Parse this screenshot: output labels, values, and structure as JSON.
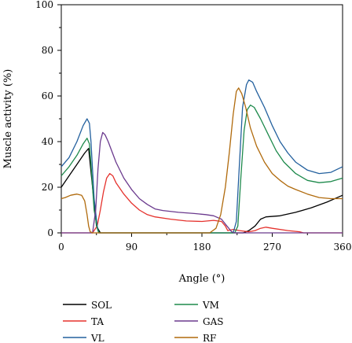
{
  "chart_data": {
    "type": "line",
    "xlabel": "Angle (°)",
    "ylabel": "Muscle activity (%)",
    "xlim": [
      0,
      360
    ],
    "ylim": [
      0,
      100
    ],
    "xticks": [
      "0",
      "90",
      "180",
      "270",
      "360"
    ],
    "yticks": [
      "0",
      "20",
      "40",
      "60",
      "80",
      "100"
    ],
    "grid": false,
    "legend_position": "bottom",
    "series": [
      {
        "name": "SOL",
        "color": "#000000",
        "points": [
          [
            0,
            20
          ],
          [
            10,
            25
          ],
          [
            20,
            30
          ],
          [
            30,
            35
          ],
          [
            35,
            37
          ],
          [
            40,
            20
          ],
          [
            45,
            3
          ],
          [
            50,
            0
          ],
          [
            90,
            0
          ],
          [
            180,
            0
          ],
          [
            225,
            0
          ],
          [
            233,
            0
          ],
          [
            240,
            1
          ],
          [
            248,
            3
          ],
          [
            255,
            6
          ],
          [
            262,
            7
          ],
          [
            280,
            7.5
          ],
          [
            300,
            9
          ],
          [
            320,
            11
          ],
          [
            340,
            13.5
          ],
          [
            360,
            16.5
          ]
        ]
      },
      {
        "name": "TA",
        "color": "#e5322d",
        "points": [
          [
            0,
            0
          ],
          [
            40,
            0
          ],
          [
            46,
            3
          ],
          [
            50,
            10
          ],
          [
            54,
            18
          ],
          [
            58,
            24
          ],
          [
            62,
            26
          ],
          [
            66,
            25
          ],
          [
            70,
            22
          ],
          [
            80,
            17
          ],
          [
            90,
            13
          ],
          [
            100,
            10
          ],
          [
            110,
            8
          ],
          [
            120,
            7
          ],
          [
            140,
            6
          ],
          [
            160,
            5.2
          ],
          [
            180,
            5
          ],
          [
            195,
            5.5
          ],
          [
            205,
            5
          ],
          [
            210,
            3
          ],
          [
            213,
            1
          ],
          [
            220,
            1.5
          ],
          [
            228,
            1
          ],
          [
            240,
            0.5
          ],
          [
            248,
            1
          ],
          [
            255,
            2
          ],
          [
            262,
            2.5
          ],
          [
            270,
            2
          ],
          [
            290,
            1
          ],
          [
            305,
            0.5
          ],
          [
            310,
            0
          ],
          [
            360,
            0
          ]
        ]
      },
      {
        "name": "VL",
        "color": "#23609e",
        "points": [
          [
            0,
            29
          ],
          [
            10,
            33
          ],
          [
            20,
            40
          ],
          [
            28,
            47
          ],
          [
            33,
            50
          ],
          [
            36,
            48
          ],
          [
            38,
            40
          ],
          [
            42,
            15
          ],
          [
            46,
            3
          ],
          [
            48,
            0
          ],
          [
            90,
            0
          ],
          [
            180,
            0
          ],
          [
            220,
            0
          ],
          [
            224,
            5
          ],
          [
            228,
            30
          ],
          [
            232,
            55
          ],
          [
            237,
            65
          ],
          [
            240,
            67
          ],
          [
            245,
            66
          ],
          [
            250,
            62
          ],
          [
            260,
            55
          ],
          [
            270,
            47
          ],
          [
            280,
            40
          ],
          [
            290,
            35
          ],
          [
            300,
            31
          ],
          [
            315,
            27.5
          ],
          [
            330,
            26
          ],
          [
            345,
            26.5
          ],
          [
            360,
            29
          ]
        ]
      },
      {
        "name": "VM",
        "color": "#1e8a4c",
        "points": [
          [
            0,
            25
          ],
          [
            10,
            29
          ],
          [
            20,
            34
          ],
          [
            28,
            39
          ],
          [
            33,
            41.5
          ],
          [
            36,
            39
          ],
          [
            38,
            30
          ],
          [
            42,
            10
          ],
          [
            46,
            2
          ],
          [
            48,
            0
          ],
          [
            90,
            0
          ],
          [
            180,
            0
          ],
          [
            222,
            0
          ],
          [
            226,
            3
          ],
          [
            230,
            25
          ],
          [
            234,
            45
          ],
          [
            238,
            54
          ],
          [
            242,
            56
          ],
          [
            247,
            55
          ],
          [
            255,
            50
          ],
          [
            265,
            43
          ],
          [
            275,
            36
          ],
          [
            285,
            31
          ],
          [
            300,
            26
          ],
          [
            315,
            23
          ],
          [
            330,
            22
          ],
          [
            345,
            22.5
          ],
          [
            360,
            24
          ]
        ]
      },
      {
        "name": "GAS",
        "color": "#6b3a8e",
        "points": [
          [
            0,
            0
          ],
          [
            40,
            0
          ],
          [
            44,
            10
          ],
          [
            47,
            28
          ],
          [
            50,
            40
          ],
          [
            53,
            44
          ],
          [
            56,
            43
          ],
          [
            60,
            40
          ],
          [
            70,
            31
          ],
          [
            80,
            24
          ],
          [
            90,
            19
          ],
          [
            100,
            15
          ],
          [
            110,
            12.5
          ],
          [
            120,
            10.5
          ],
          [
            130,
            9.8
          ],
          [
            150,
            9
          ],
          [
            170,
            8.5
          ],
          [
            185,
            8
          ],
          [
            195,
            7.5
          ],
          [
            205,
            6
          ],
          [
            212,
            3
          ],
          [
            218,
            0.5
          ],
          [
            222,
            0
          ],
          [
            360,
            0
          ]
        ]
      },
      {
        "name": "RF",
        "color": "#b06a0c",
        "points": [
          [
            0,
            15
          ],
          [
            5,
            15.5
          ],
          [
            12,
            16.5
          ],
          [
            20,
            17
          ],
          [
            26,
            16.5
          ],
          [
            30,
            14
          ],
          [
            33,
            8
          ],
          [
            35,
            3
          ],
          [
            37,
            0.5
          ],
          [
            40,
            0
          ],
          [
            180,
            0
          ],
          [
            190,
            0
          ],
          [
            198,
            2
          ],
          [
            204,
            8
          ],
          [
            210,
            20
          ],
          [
            215,
            35
          ],
          [
            220,
            52
          ],
          [
            224,
            62
          ],
          [
            227,
            63.5
          ],
          [
            231,
            61
          ],
          [
            236,
            55
          ],
          [
            242,
            46
          ],
          [
            250,
            38
          ],
          [
            260,
            31
          ],
          [
            270,
            26
          ],
          [
            280,
            23
          ],
          [
            290,
            20.5
          ],
          [
            300,
            19
          ],
          [
            315,
            17
          ],
          [
            330,
            15.5
          ],
          [
            345,
            15
          ],
          [
            360,
            15
          ]
        ]
      }
    ]
  }
}
